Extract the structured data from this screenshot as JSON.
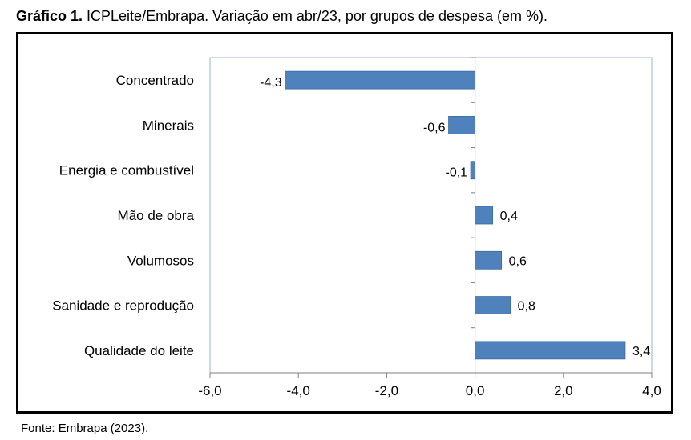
{
  "caption": {
    "label": "Gráfico 1.",
    "text": " ICPLeite/Embrapa. Variação em abr/23, por grupos de despesa (em %)."
  },
  "source": "Fonte: Embrapa (2023).",
  "colors": {
    "bar": "#4f81bd",
    "bar_stroke": "#3a6aa0",
    "plot_border": "#95b3d7",
    "axis": "#7f7f7f"
  },
  "chart_data": {
    "type": "bar",
    "orientation": "horizontal",
    "categories": [
      "Concentrado",
      "Minerais",
      "Energia e combustível",
      "Mão de obra",
      "Volumosos",
      "Sanidade e reprodução",
      "Qualidade do leite"
    ],
    "values": [
      -4.3,
      -0.6,
      -0.1,
      0.4,
      0.6,
      0.8,
      3.4
    ],
    "value_labels": [
      "-4,3",
      "-0,6",
      "-0,1",
      "0,4",
      "0,6",
      "0,8",
      "3,4"
    ],
    "xlim": [
      -6.0,
      4.0
    ],
    "ticks": [
      -6,
      -4,
      -2,
      0,
      2,
      4
    ],
    "tick_labels": [
      "-6,0",
      "-4,0",
      "-2,0",
      "0,0",
      "2,0",
      "4,0"
    ],
    "grid": false,
    "legend": "none"
  }
}
